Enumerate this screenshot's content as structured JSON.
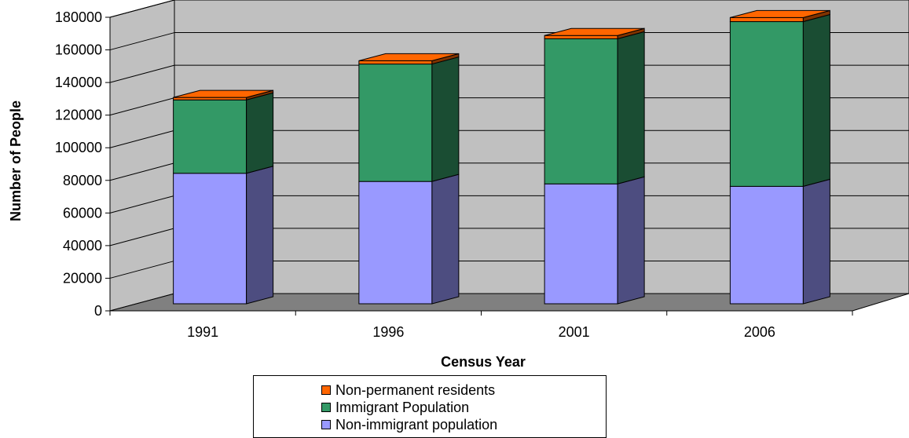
{
  "chart_data": {
    "type": "bar",
    "stacked": true,
    "three_d": true,
    "xlabel": "Census Year",
    "ylabel": "Number of People",
    "ylim": [
      0,
      180000
    ],
    "yticks": [
      0,
      20000,
      40000,
      60000,
      80000,
      100000,
      120000,
      140000,
      160000,
      180000
    ],
    "categories": [
      "1991",
      "1996",
      "2001",
      "2006"
    ],
    "grid": true,
    "legend_position": "bottom",
    "series": [
      {
        "name": "Non-immigrant population",
        "values": [
          80000,
          75000,
          73500,
          72000
        ],
        "color": "#9999ff",
        "side_color": "#4d4d80"
      },
      {
        "name": "Immigrant Population",
        "values": [
          45000,
          72000,
          89000,
          101000
        ],
        "color": "#339966",
        "side_color": "#1a4d33"
      },
      {
        "name": "Non-permanent residents",
        "values": [
          1500,
          2000,
          2000,
          2500
        ],
        "color": "#ff6600",
        "side_color": "#803300"
      }
    ],
    "legend_order": [
      "Non-permanent residents",
      "Immigrant Population",
      "Non-immigrant population"
    ]
  }
}
